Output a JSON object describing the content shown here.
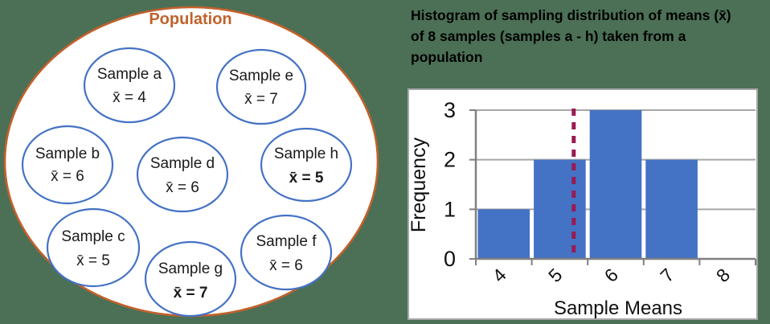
{
  "colors": {
    "background": "#4B7056",
    "population_border": "#C2612C",
    "population_label": "#C0622C",
    "sample_border": "#4472C4",
    "bar": "#4472C4",
    "mean_line": "#9B1A52",
    "grid": "#A6A6A6",
    "axis": "#808080",
    "chart_border": "#A6A6A6"
  },
  "population": {
    "label": "Population",
    "samples": [
      {
        "name": "Sample a",
        "mean": "x̄ = 4",
        "mean_value": 4,
        "bold": false
      },
      {
        "name": "Sample e",
        "mean": "x̄ = 7",
        "mean_value": 7,
        "bold": false
      },
      {
        "name": "Sample b",
        "mean": "x̄ = 6",
        "mean_value": 6,
        "bold": false
      },
      {
        "name": "Sample d",
        "mean": "x̄ = 6",
        "mean_value": 6,
        "bold": false
      },
      {
        "name": "Sample h",
        "mean": "x̄ = 5",
        "mean_value": 5,
        "bold": true
      },
      {
        "name": "Sample c",
        "mean": "x̄ = 5",
        "mean_value": 5,
        "bold": false
      },
      {
        "name": "Sample g",
        "mean": "x̄ = 7",
        "mean_value": 7,
        "bold": true
      },
      {
        "name": "Sample f",
        "mean": "x̄ = 6",
        "mean_value": 6,
        "bold": false
      }
    ]
  },
  "heading": {
    "line1": "Histogram of sampling distribution of means (x̄)",
    "line2": "of 8 samples (samples a - h) taken from a",
    "line3": "population"
  },
  "chart_data": {
    "type": "bar",
    "title": "Histogram of sampling distribution of means (x̄) of 8 samples (samples a - h) taken from a population",
    "categories": [
      "4",
      "5",
      "6",
      "7",
      "8"
    ],
    "values": [
      1,
      2,
      3,
      2,
      0
    ],
    "xlabel": "Sample Means",
    "ylabel": "Frequency",
    "ylim": [
      0,
      3
    ],
    "yticks": [
      0,
      1,
      2,
      3
    ],
    "bin_start": 4,
    "bin_width": 1,
    "grid": true,
    "legend_position": "none",
    "mean_line": {
      "value": 5.75,
      "style": "dashed"
    }
  }
}
